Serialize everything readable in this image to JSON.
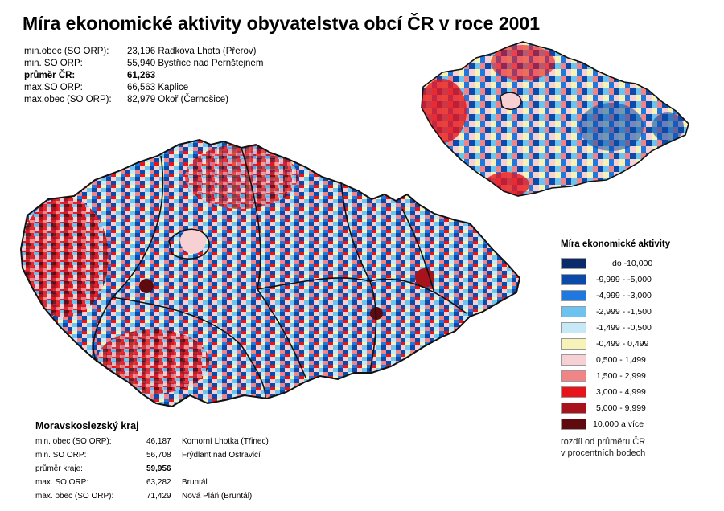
{
  "title": "Míra ekonomické aktivity obyvatelstva obcí ČR v roce 2001",
  "cz_stats": [
    {
      "label": "min.obec (SO ORP):",
      "value": "23,196 Radkova Lhota (Přerov)",
      "bold": false
    },
    {
      "label": "min. SO ORP:",
      "value": "55,940 Bystřice nad Pernštejnem",
      "bold": false
    },
    {
      "label": "průměr ČR:",
      "value": "61,263",
      "bold": true
    },
    {
      "label": "max.SO ORP:",
      "value": "66,563 Kaplice",
      "bold": false
    },
    {
      "label": "max.obec (SO ORP):",
      "value": "82,979 Okoř (Černošice)",
      "bold": false
    }
  ],
  "msk": {
    "title": "Moravskoslezský kraj",
    "rows": [
      {
        "label": "min. obec (SO ORP):",
        "num": "46,187",
        "place": "Komorní Lhotka (Třinec)",
        "bold": false
      },
      {
        "label": "min. SO ORP:",
        "num": "56,708",
        "place": "Frýdlant nad Ostravicí",
        "bold": false
      },
      {
        "label": "průměr kraje:",
        "num": "59,956",
        "place": "",
        "bold": true
      },
      {
        "label": "max. SO ORP:",
        "num": "63,282",
        "place": "Bruntál",
        "bold": false
      },
      {
        "label": "max. obec (SO ORP):",
        "num": "71,429",
        "place": "Nová Pláň (Bruntál)",
        "bold": false
      }
    ]
  },
  "legend": {
    "title": "Míra ekonomické aktivity",
    "items": [
      {
        "label": "do -10,000",
        "color": "#0a2a6b"
      },
      {
        "label": "-9,999 - -5,000",
        "color": "#0b4aa8"
      },
      {
        "label": "-4,999 - -3,000",
        "color": "#1e78e0"
      },
      {
        "label": "-2,999 - -1,500",
        "color": "#6cc3ef"
      },
      {
        "label": "-1,499 - -0,500",
        "color": "#c7e8f6"
      },
      {
        "label": "-0,499 - 0,499",
        "color": "#f6f2b8"
      },
      {
        "label": "0,500 - 1,499",
        "color": "#f7d0d4"
      },
      {
        "label": "1,500 - 2,999",
        "color": "#f08487"
      },
      {
        "label": "3,000 - 4,999",
        "color": "#e8141c"
      },
      {
        "label": "5,000 - 9,999",
        "color": "#a8121a"
      },
      {
        "label": "10,000 a více",
        "color": "#5e0a0e"
      }
    ],
    "footnote_line1": "rozdíl od průměru ČR",
    "footnote_line2": "v procentních bodech"
  }
}
